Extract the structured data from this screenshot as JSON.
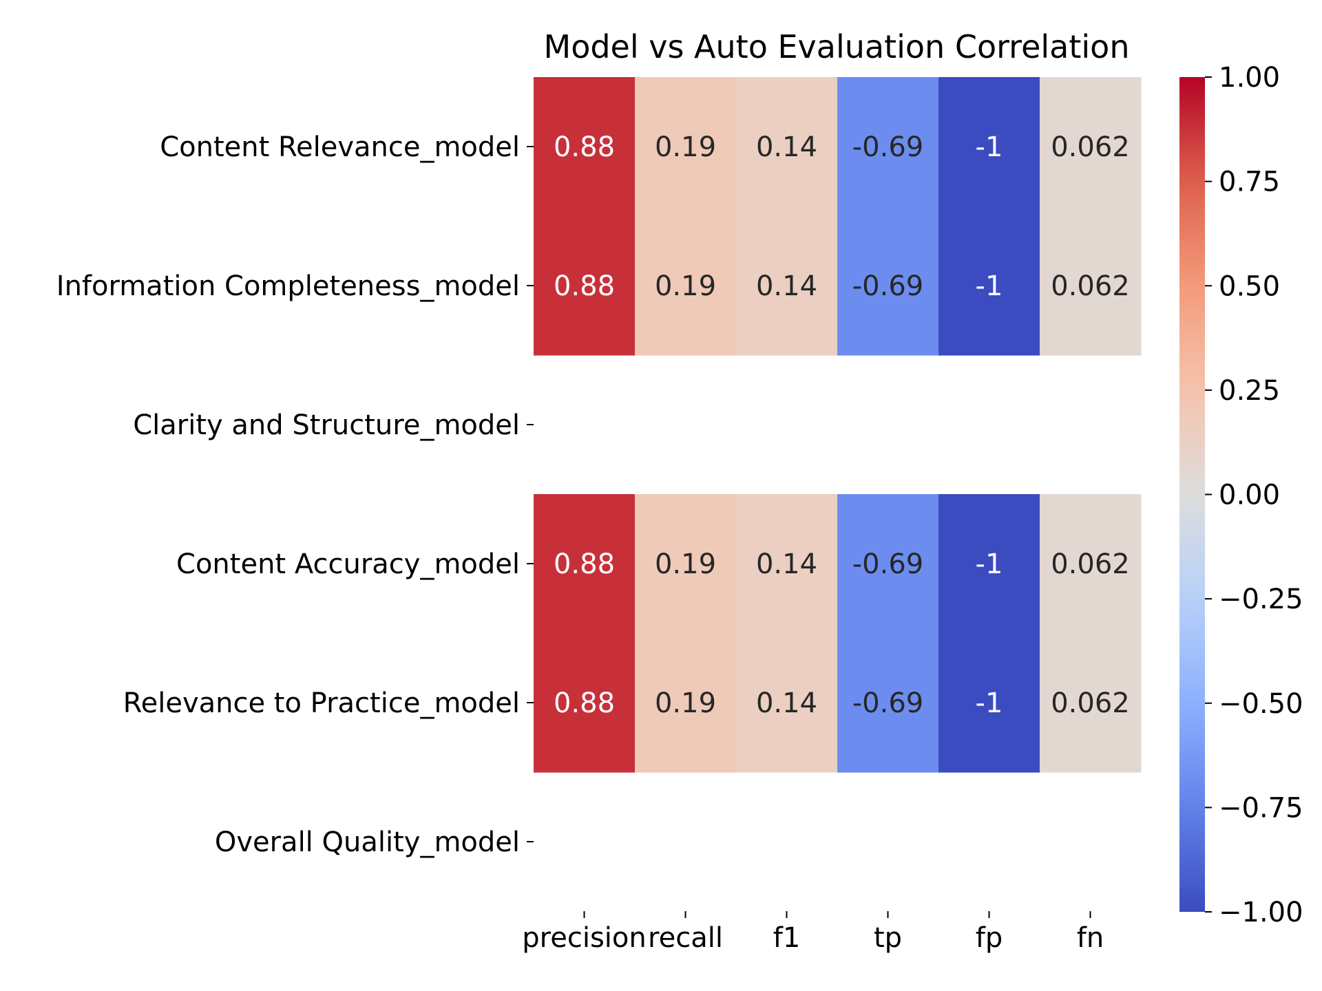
{
  "chart_data": {
    "type": "heatmap",
    "title": "Model vs Auto Evaluation Correlation",
    "xlabel": "",
    "ylabel": "",
    "columns": [
      "precision",
      "recall",
      "f1",
      "tp",
      "fp",
      "fn"
    ],
    "rows": [
      "Content Relevance_model",
      "Information Completeness_model",
      "Clarity and Structure_model",
      "Content Accuracy_model",
      "Relevance to Practice_model",
      "Overall Quality_model"
    ],
    "values": [
      [
        0.88,
        0.19,
        0.14,
        -0.69,
        -1,
        0.062
      ],
      [
        0.88,
        0.19,
        0.14,
        -0.69,
        -1,
        0.062
      ],
      [
        null,
        null,
        null,
        null,
        null,
        null
      ],
      [
        0.88,
        0.19,
        0.14,
        -0.69,
        -1,
        0.062
      ],
      [
        0.88,
        0.19,
        0.14,
        -0.69,
        -1,
        0.062
      ],
      [
        null,
        null,
        null,
        null,
        null,
        null
      ]
    ],
    "annotations": [
      [
        "0.88",
        "0.19",
        "0.14",
        "-0.69",
        "-1",
        "0.062"
      ],
      [
        "0.88",
        "0.19",
        "0.14",
        "-0.69",
        "-1",
        "0.062"
      ],
      [
        "",
        "",
        "",
        "",
        "",
        ""
      ],
      [
        "0.88",
        "0.19",
        "0.14",
        "-0.69",
        "-1",
        "0.062"
      ],
      [
        "0.88",
        "0.19",
        "0.14",
        "-0.69",
        "-1",
        "0.062"
      ],
      [
        "",
        "",
        "",
        "",
        "",
        ""
      ]
    ],
    "colormap": "coolwarm",
    "vmin": -1,
    "vmax": 1,
    "colorbar": {
      "ticks": [
        1.0,
        0.75,
        0.5,
        0.25,
        0.0,
        -0.25,
        -0.5,
        -0.75,
        -1.0
      ],
      "tick_labels": [
        "1.00",
        "0.75",
        "0.50",
        "0.25",
        "0.00",
        "−0.25",
        "−0.50",
        "−0.75",
        "−1.00"
      ],
      "placement": "right"
    },
    "grid": false,
    "legend": "none"
  }
}
